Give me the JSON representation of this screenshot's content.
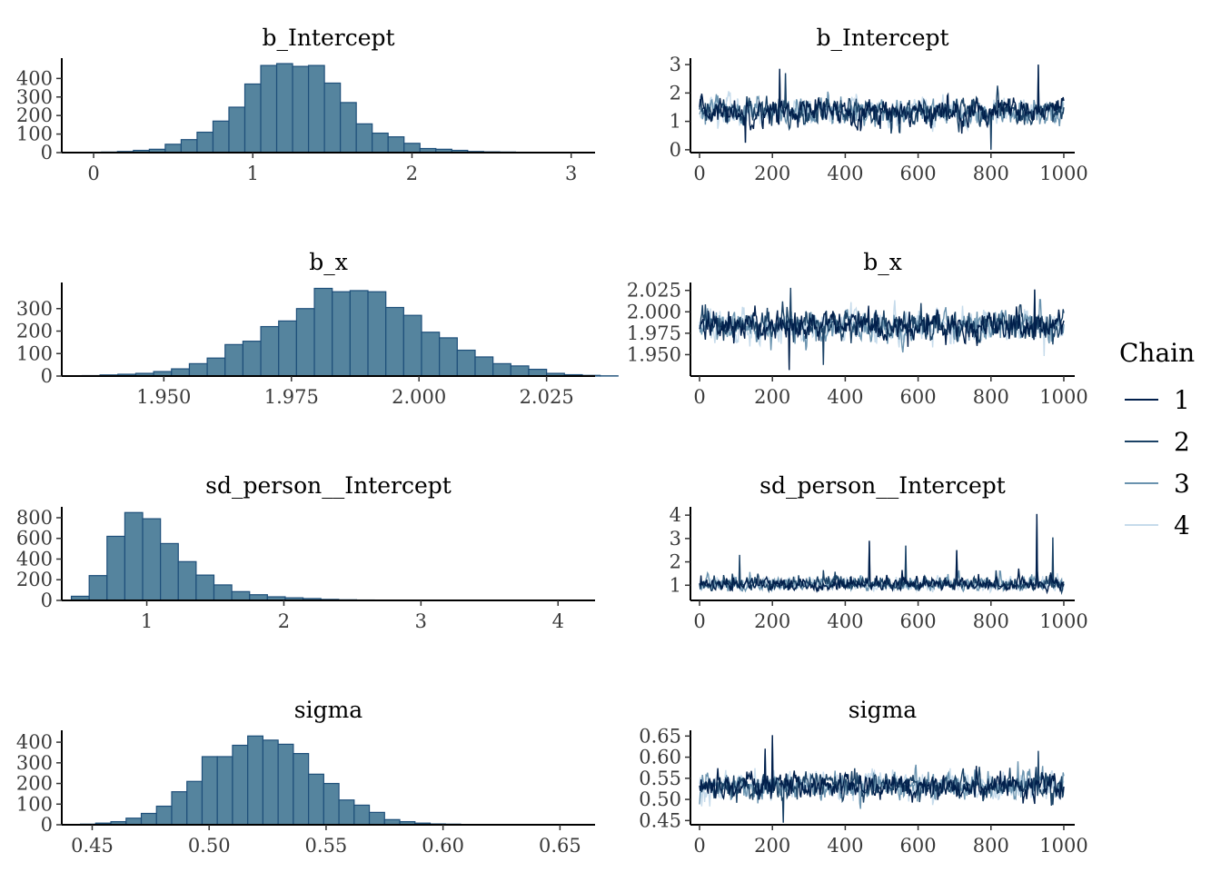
{
  "legend": {
    "title": "Chain",
    "entries": [
      {
        "label": "1",
        "color": "#011f4b"
      },
      {
        "label": "2",
        "color": "#1b4266"
      },
      {
        "label": "3",
        "color": "#6a93af"
      },
      {
        "label": "4",
        "color": "#c6dbeb"
      }
    ]
  },
  "colors": {
    "bar_fill": "#55849e",
    "bar_edge": "#1e4f7a"
  },
  "chart_data": [
    {
      "type": "bar",
      "title": "b_Intercept",
      "bin_start": -0.05,
      "bin_width": 0.1,
      "values": [
        2,
        3,
        6,
        12,
        18,
        45,
        70,
        110,
        170,
        245,
        370,
        470,
        480,
        465,
        470,
        375,
        270,
        155,
        105,
        85,
        50,
        22,
        18,
        12,
        6,
        4,
        3,
        2,
        1,
        1
      ],
      "xlim": [
        -0.2,
        3.15
      ],
      "ylim": [
        0,
        490
      ],
      "xticks": [
        0,
        1,
        2,
        3
      ],
      "xticklabels": [
        "0",
        "1",
        "2",
        "3"
      ],
      "yticks": [
        0,
        100,
        200,
        300,
        400
      ],
      "yticklabels": [
        "0",
        "100",
        "200",
        "300",
        "400"
      ]
    },
    {
      "type": "line",
      "title": "b_Intercept",
      "center": 1.35,
      "spread": 0.42,
      "spikes": [
        [
          220,
          2.85
        ],
        [
          235,
          2.7
        ],
        [
          930,
          3.0
        ],
        [
          800,
          0.0
        ],
        [
          125,
          0.25
        ]
      ],
      "xlim": [
        -25,
        1030
      ],
      "ylim": [
        -0.1,
        3.1
      ],
      "xticks": [
        0,
        200,
        400,
        600,
        800,
        1000
      ],
      "xticklabels": [
        "0",
        "200",
        "400",
        "600",
        "800",
        "1000"
      ],
      "yticks": [
        0,
        1,
        2,
        3
      ],
      "yticklabels": [
        "0",
        "1",
        "2",
        "3"
      ]
    },
    {
      "type": "bar",
      "title": "b_x",
      "bin_start": 1.9305,
      "bin_width": 0.0035,
      "values": [
        1,
        2,
        5,
        8,
        12,
        20,
        32,
        55,
        80,
        140,
        155,
        220,
        245,
        300,
        390,
        375,
        380,
        375,
        305,
        270,
        195,
        170,
        115,
        85,
        55,
        45,
        30,
        12,
        6,
        3,
        1
      ],
      "xlim": [
        1.93,
        2.0345
      ],
      "ylim": [
        0,
        400
      ],
      "xticks": [
        1.95,
        1.975,
        2.0,
        2.025
      ],
      "xticklabels": [
        "1.950",
        "1.975",
        "2.000",
        "2.025"
      ],
      "yticks": [
        0,
        100,
        200,
        300
      ],
      "yticklabels": [
        "0",
        "100",
        "200",
        "300"
      ]
    },
    {
      "type": "line",
      "title": "b_x",
      "center": 1.984,
      "spread": 0.016,
      "spikes": [
        [
          245,
          1.932
        ],
        [
          250,
          2.028
        ],
        [
          920,
          2.026
        ],
        [
          340,
          1.938
        ]
      ],
      "xlim": [
        -25,
        1030
      ],
      "ylim": [
        1.925,
        2.03
      ],
      "xticks": [
        0,
        200,
        400,
        600,
        800,
        1000
      ],
      "xticklabels": [
        "0",
        "200",
        "400",
        "600",
        "800",
        "1000"
      ],
      "yticks": [
        1.95,
        1.975,
        2.0,
        2.025
      ],
      "yticklabels": [
        "1.950",
        "1.975",
        "2.000",
        "2.025"
      ]
    },
    {
      "type": "bar",
      "title": "sd_person__Intercept",
      "bin_start": 0.45,
      "bin_width": 0.13,
      "values": [
        40,
        240,
        620,
        850,
        790,
        550,
        375,
        245,
        150,
        85,
        55,
        35,
        25,
        18,
        10,
        6,
        4,
        3,
        2,
        2,
        1,
        1,
        1,
        1,
        1,
        1,
        1,
        1
      ],
      "xlim": [
        0.38,
        4.27
      ],
      "ylim": [
        0,
        870
      ],
      "xticks": [
        1,
        2,
        3,
        4
      ],
      "xticklabels": [
        "1",
        "2",
        "3",
        "4"
      ],
      "yticks": [
        0,
        200,
        400,
        600,
        800
      ],
      "yticklabels": [
        "0",
        "200",
        "400",
        "600",
        "800"
      ]
    },
    {
      "type": "line",
      "title": "sd_person__Intercept",
      "center": 1.05,
      "spread": 0.25,
      "skew": true,
      "spikes": [
        [
          925,
          4.05
        ],
        [
          970,
          3.05
        ],
        [
          465,
          2.9
        ],
        [
          565,
          2.7
        ],
        [
          705,
          2.5
        ],
        [
          110,
          2.3
        ]
      ],
      "xlim": [
        -25,
        1030
      ],
      "ylim": [
        0.35,
        4.2
      ],
      "xticks": [
        0,
        200,
        400,
        600,
        800,
        1000
      ],
      "xticklabels": [
        "0",
        "200",
        "400",
        "600",
        "800",
        "1000"
      ],
      "yticks": [
        1,
        2,
        3,
        4
      ],
      "yticklabels": [
        "1",
        "2",
        "3",
        "4"
      ]
    },
    {
      "type": "bar",
      "title": "sigma",
      "bin_start": 0.445,
      "bin_width": 0.0065,
      "values": [
        3,
        8,
        15,
        32,
        55,
        90,
        160,
        210,
        330,
        330,
        385,
        430,
        410,
        390,
        345,
        245,
        200,
        120,
        95,
        60,
        25,
        15,
        8,
        4,
        3,
        1,
        1,
        1,
        1
      ],
      "xlim": [
        0.437,
        0.665
      ],
      "ylim": [
        0,
        440
      ],
      "xticks": [
        0.45,
        0.5,
        0.55,
        0.6,
        0.65
      ],
      "xticklabels": [
        "0.45",
        "0.50",
        "0.55",
        "0.60",
        "0.65"
      ],
      "yticks": [
        0,
        100,
        200,
        300,
        400
      ],
      "yticklabels": [
        "0",
        "100",
        "200",
        "300",
        "400"
      ]
    },
    {
      "type": "line",
      "title": "sigma",
      "center": 0.532,
      "spread": 0.028,
      "spikes": [
        [
          200,
          0.652
        ],
        [
          230,
          0.445
        ],
        [
          180,
          0.62
        ],
        [
          930,
          0.615
        ]
      ],
      "xlim": [
        -25,
        1030
      ],
      "ylim": [
        0.44,
        0.655
      ],
      "xticks": [
        0,
        200,
        400,
        600,
        800,
        1000
      ],
      "xticklabels": [
        "0",
        "200",
        "400",
        "600",
        "800",
        "1000"
      ],
      "yticks": [
        0.45,
        0.5,
        0.55,
        0.6,
        0.65
      ],
      "yticklabels": [
        "0.45",
        "0.50",
        "0.55",
        "0.60",
        "0.65"
      ]
    }
  ]
}
